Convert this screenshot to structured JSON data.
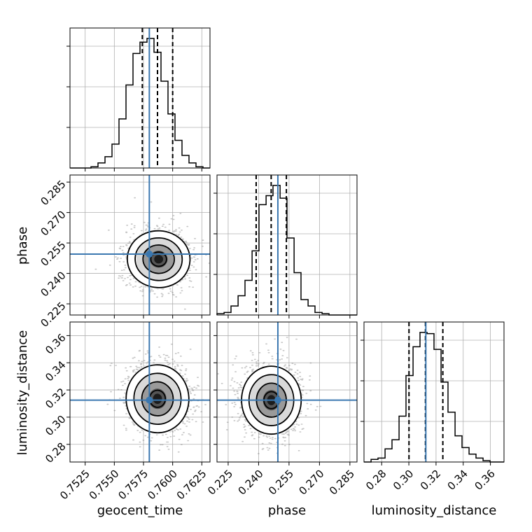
{
  "chart_data": {
    "type": "corner",
    "parameters": [
      "geocent_time",
      "phase",
      "luminosity_distance"
    ],
    "axis_labels": {
      "geocent_time": "geocent_time",
      "phase": "phase",
      "luminosity_distance": "luminosity_distance"
    },
    "ranges": {
      "geocent_time": [
        0.7512,
        0.7632
      ],
      "phase": [
        0.2195,
        0.2885
      ],
      "luminosity_distance": [
        0.267,
        0.37
      ]
    },
    "ticks": {
      "geocent_time": [
        0.7525,
        0.755,
        0.7575,
        0.76,
        0.7625
      ],
      "phase": [
        0.225,
        0.24,
        0.255,
        0.27,
        0.285
      ],
      "luminosity_distance": [
        0.28,
        0.3,
        0.32,
        0.34,
        0.36
      ]
    },
    "tick_labels": {
      "geocent_time": [
        "0.7525",
        "0.7550",
        "0.7575",
        "0.7600",
        "0.7625"
      ],
      "phase": [
        "0.225",
        "0.240",
        "0.255",
        "0.270",
        "0.285"
      ],
      "luminosity_distance": [
        "0.28",
        "0.30",
        "0.32",
        "0.34",
        "0.36"
      ]
    },
    "truths": {
      "geocent_time": 0.758,
      "phase": 0.2495,
      "luminosity_distance": 0.3125
    },
    "quantiles": {
      "geocent_time": [
        0.7574,
        0.7587,
        0.76
      ],
      "phase": [
        0.2388,
        0.2462,
        0.2537
      ],
      "luminosity_distance": [
        0.3001,
        0.3122,
        0.325
      ]
    },
    "histograms": {
      "geocent_time": {
        "edges": [
          0.7512,
          0.7518,
          0.7524,
          0.753,
          0.7536,
          0.7542,
          0.7548,
          0.7554,
          0.756,
          0.7566,
          0.7572,
          0.7578,
          0.7584,
          0.759,
          0.7596,
          0.7602,
          0.7608,
          0.7614,
          0.762,
          0.7626,
          0.7632
        ],
        "counts": [
          0,
          0,
          0,
          1,
          4,
          9,
          19,
          39,
          66,
          91,
          100,
          103,
          92,
          69,
          43,
          22,
          10,
          4,
          1,
          0
        ]
      },
      "phase": {
        "edges": [
          0.2195,
          0.223,
          0.2264,
          0.2299,
          0.2333,
          0.2368,
          0.2402,
          0.2437,
          0.2471,
          0.2506,
          0.254,
          0.2575,
          0.2609,
          0.2644,
          0.2678,
          0.2713,
          0.2747,
          0.2782,
          0.2816,
          0.2851,
          0.2885
        ],
        "counts": [
          1,
          2,
          7,
          15,
          27,
          50,
          86,
          93,
          101,
          91,
          60,
          33,
          12,
          7,
          2,
          1,
          0,
          0,
          0,
          0
        ]
      },
      "luminosity_distance": {
        "edges": [
          0.267,
          0.2722,
          0.2773,
          0.2825,
          0.2876,
          0.2928,
          0.2979,
          0.3031,
          0.3082,
          0.3134,
          0.3185,
          0.3237,
          0.3288,
          0.334,
          0.3391,
          0.3443,
          0.3494,
          0.3546,
          0.3597,
          0.3649,
          0.37
        ],
        "counts": [
          0,
          2,
          3,
          10,
          17,
          35,
          66,
          88,
          99,
          98,
          86,
          61,
          38,
          20,
          11,
          6,
          3,
          1,
          0,
          0
        ]
      }
    },
    "panels_2d": [
      {
        "x": "geocent_time",
        "y": "phase",
        "center": [
          0.7588,
          0.247
        ],
        "sigma": [
          0.00128,
          0.007
        ],
        "correlation": -0.05,
        "contour_levels": [
          0.5,
          1.0,
          1.5,
          2.0
        ]
      },
      {
        "x": "geocent_time",
        "y": "luminosity_distance",
        "center": [
          0.7587,
          0.3135
        ],
        "sigma": [
          0.00128,
          0.0125
        ],
        "correlation": 0.05,
        "contour_levels": [
          0.5,
          1.0,
          1.5,
          2.0
        ]
      },
      {
        "x": "phase",
        "y": "luminosity_distance",
        "center": [
          0.2463,
          0.3125
        ],
        "sigma": [
          0.007,
          0.0125
        ],
        "correlation": 0.0,
        "contour_levels": [
          0.5,
          1.0,
          1.5,
          2.0
        ]
      }
    ],
    "grid": true,
    "colors": {
      "truth": "#3b78b0",
      "samples": "#808080",
      "lines": "#000000"
    }
  }
}
